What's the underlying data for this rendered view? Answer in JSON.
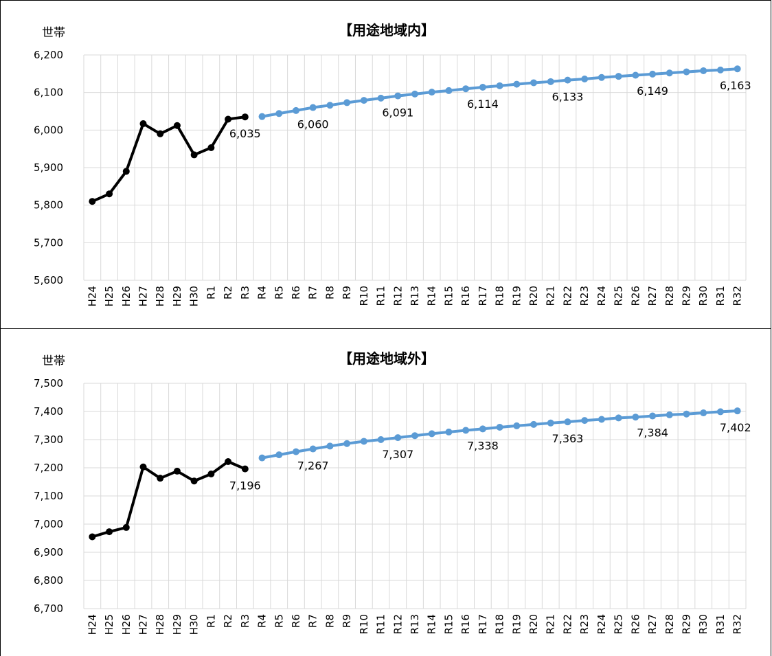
{
  "chart_data": [
    {
      "type": "line",
      "title": "【用途地域内】",
      "ylabel": "世帯",
      "ylim": [
        5600,
        6200
      ],
      "ytick_step": 100,
      "categories": [
        "H24",
        "H25",
        "H26",
        "H27",
        "H28",
        "H29",
        "H30",
        "R1",
        "R2",
        "R3",
        "R4",
        "R5",
        "R6",
        "R7",
        "R8",
        "R9",
        "R10",
        "R11",
        "R12",
        "R13",
        "R14",
        "R15",
        "R16",
        "R17",
        "R18",
        "R19",
        "R20",
        "R21",
        "R22",
        "R23",
        "R24",
        "R25",
        "R26",
        "R27",
        "R28",
        "R29",
        "R30",
        "R31",
        "R32"
      ],
      "series": [
        {
          "color": "#000000",
          "values": [
            5810,
            5830,
            5890,
            6017,
            5990,
            6012,
            5934,
            5953,
            6029,
            6035,
            null,
            null,
            null,
            null,
            null,
            null,
            null,
            null,
            null,
            null,
            null,
            null,
            null,
            null,
            null,
            null,
            null,
            null,
            null,
            null,
            null,
            null,
            null,
            null,
            null,
            null,
            null,
            null,
            null
          ]
        },
        {
          "color": "#5b9bd5",
          "values": [
            null,
            null,
            null,
            null,
            null,
            null,
            null,
            null,
            null,
            null,
            6036,
            6044,
            6052,
            6060,
            6066,
            6073,
            6079,
            6085,
            6091,
            6096,
            6101,
            6105,
            6110,
            6114,
            6118,
            6122,
            6126,
            6129,
            6133,
            6136,
            6140,
            6143,
            6146,
            6149,
            6152,
            6155,
            6158,
            6160,
            6163
          ]
        }
      ],
      "data_labels": [
        {
          "category": "R3",
          "text": "6,035"
        },
        {
          "category": "R7",
          "text": "6,060"
        },
        {
          "category": "R12",
          "text": "6,091"
        },
        {
          "category": "R17",
          "text": "6,114"
        },
        {
          "category": "R22",
          "text": "6,133"
        },
        {
          "category": "R27",
          "text": "6,149"
        },
        {
          "category": "R32",
          "text": "6,163"
        }
      ],
      "grid": true
    },
    {
      "type": "line",
      "title": "【用途地域外】",
      "ylabel": "世帯",
      "ylim": [
        6700,
        7500
      ],
      "ytick_step": 100,
      "categories": [
        "H24",
        "H25",
        "H26",
        "H27",
        "H28",
        "H29",
        "H30",
        "R1",
        "R2",
        "R3",
        "R4",
        "R5",
        "R6",
        "R7",
        "R8",
        "R9",
        "R10",
        "R11",
        "R12",
        "R13",
        "R14",
        "R15",
        "R16",
        "R17",
        "R18",
        "R19",
        "R20",
        "R21",
        "R22",
        "R23",
        "R24",
        "R25",
        "R26",
        "R27",
        "R28",
        "R29",
        "R30",
        "R31",
        "R32"
      ],
      "series": [
        {
          "color": "#000000",
          "values": [
            6955,
            6973,
            6988,
            7203,
            7163,
            7188,
            7153,
            7178,
            7222,
            7196,
            null,
            null,
            null,
            null,
            null,
            null,
            null,
            null,
            null,
            null,
            null,
            null,
            null,
            null,
            null,
            null,
            null,
            null,
            null,
            null,
            null,
            null,
            null,
            null,
            null,
            null,
            null,
            null,
            null
          ]
        },
        {
          "color": "#5b9bd5",
          "values": [
            null,
            null,
            null,
            null,
            null,
            null,
            null,
            null,
            null,
            null,
            7235,
            7246,
            7257,
            7267,
            7277,
            7286,
            7294,
            7300,
            7307,
            7314,
            7321,
            7327,
            7333,
            7338,
            7344,
            7349,
            7354,
            7359,
            7363,
            7368,
            7372,
            7377,
            7380,
            7384,
            7388,
            7391,
            7395,
            7399,
            7402
          ]
        }
      ],
      "data_labels": [
        {
          "category": "R3",
          "text": "7,196"
        },
        {
          "category": "R7",
          "text": "7,267"
        },
        {
          "category": "R12",
          "text": "7,307"
        },
        {
          "category": "R17",
          "text": "7,338"
        },
        {
          "category": "R22",
          "text": "7,363"
        },
        {
          "category": "R27",
          "text": "7,384"
        },
        {
          "category": "R32",
          "text": "7,402"
        }
      ],
      "grid": true
    }
  ]
}
